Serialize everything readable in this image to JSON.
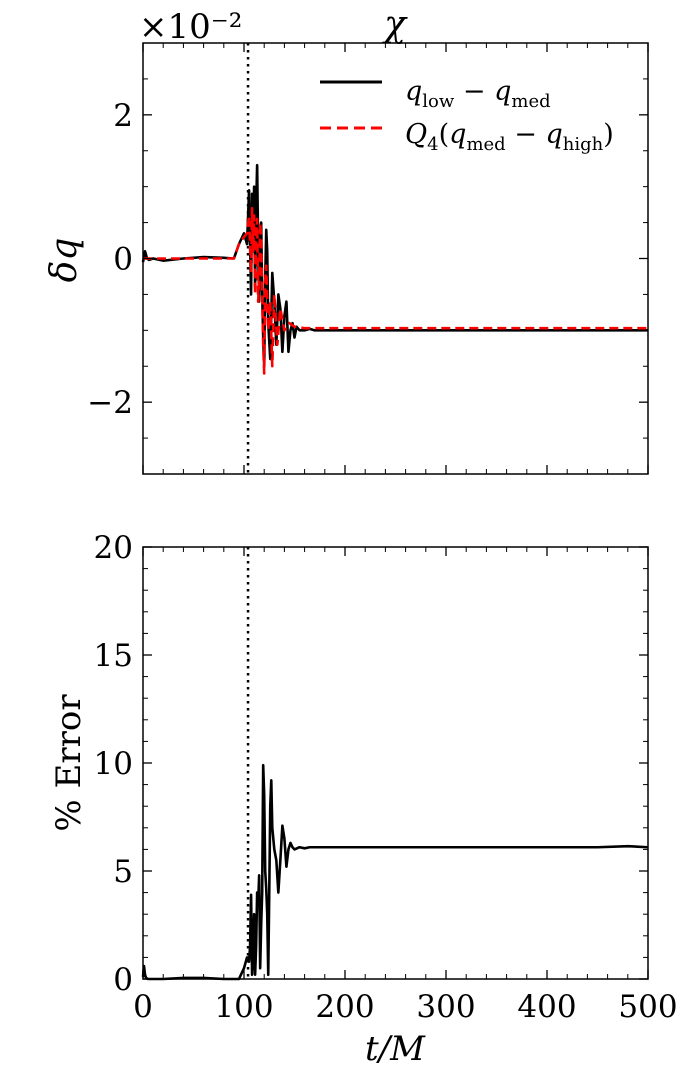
{
  "chart_data": [
    {
      "type": "line",
      "title": "χ",
      "offset_text": "×10⁻²",
      "xlabel": "",
      "ylabel": "δq",
      "xlim": [
        0,
        500
      ],
      "ylim": [
        -3,
        3
      ],
      "x_ticks": [
        0,
        100,
        200,
        300,
        400,
        500
      ],
      "y_ticks": [
        -2,
        0,
        2
      ],
      "y_tick_labels": [
        "−2",
        "0",
        "2"
      ],
      "vline_x": 104,
      "legend": "top-right",
      "series": [
        {
          "name": "q_low − q_med",
          "legend_label": {
            "q": "q",
            "sub1": "low",
            "op": " − ",
            "q2": "q",
            "sub2": "med"
          },
          "color": "#000000",
          "dash": "solid",
          "x": [
            0,
            2,
            4,
            6,
            10,
            20,
            40,
            60,
            80,
            90,
            95,
            100,
            103,
            105,
            107,
            108,
            109,
            110,
            111,
            112,
            113,
            114,
            115,
            116,
            117,
            118,
            119,
            120,
            121,
            122,
            123,
            124,
            126,
            128,
            130,
            132,
            134,
            136,
            138,
            140,
            142,
            144,
            146,
            148,
            150,
            152,
            155,
            160,
            165,
            170,
            180,
            200,
            250,
            300,
            350,
            400,
            450,
            500
          ],
          "values": [
            -0.05,
            0.1,
            0.0,
            -0.02,
            0.0,
            -0.03,
            0.0,
            0.02,
            0.01,
            0.0,
            0.2,
            0.35,
            0.2,
            0.95,
            -0.5,
            0.9,
            0.1,
            1.0,
            -0.4,
            0.7,
            1.3,
            0.2,
            -0.6,
            0.4,
            0.5,
            -0.5,
            -1.1,
            -1.5,
            -0.3,
            0.4,
            0.1,
            -0.9,
            -1.4,
            -0.2,
            -0.6,
            -1.2,
            -0.5,
            -0.7,
            -1.3,
            -0.8,
            -0.6,
            -1.3,
            -1.0,
            -0.9,
            -1.1,
            -0.95,
            -1.0,
            -1.0,
            -0.98,
            -1.0,
            -1.0,
            -1.0,
            -1.0,
            -1.0,
            -1.0,
            -1.0,
            -1.0,
            -1.0
          ]
        },
        {
          "name": "Q_4(q_med − q_high)",
          "legend_label": {
            "Q": "Q",
            "Qsub": "4",
            "open": "(",
            "q": "q",
            "sub1": "med",
            "op": " − ",
            "q2": "q",
            "sub2": "high",
            "close": ")"
          },
          "color": "#ff0000",
          "dash": "dashed",
          "x": [
            0,
            5,
            20,
            40,
            60,
            80,
            90,
            95,
            100,
            103,
            105,
            107,
            108,
            109,
            110,
            111,
            112,
            113,
            114,
            115,
            116,
            117,
            118,
            119,
            120,
            121,
            122,
            124,
            126,
            128,
            130,
            133,
            136,
            140,
            145,
            150,
            160,
            180,
            200,
            250,
            300,
            350,
            400,
            450,
            500
          ],
          "values": [
            0.0,
            0.0,
            0.0,
            0.0,
            0.0,
            0.0,
            0.0,
            0.2,
            0.3,
            0.35,
            0.6,
            -0.2,
            0.7,
            0.1,
            0.6,
            -0.5,
            0.3,
            0.55,
            -0.6,
            -0.3,
            0.5,
            0.3,
            -0.5,
            -1.2,
            -1.6,
            -0.3,
            -0.1,
            -1.0,
            -0.6,
            -1.5,
            -0.5,
            -1.2,
            -0.7,
            -1.0,
            -0.9,
            -0.95,
            -0.97,
            -0.97,
            -0.97,
            -0.97,
            -0.97,
            -0.97,
            -0.97,
            -0.97,
            -0.97
          ]
        }
      ]
    },
    {
      "type": "line",
      "title": "",
      "xlabel": "t/M",
      "ylabel": "% Error",
      "xlim": [
        0,
        500
      ],
      "ylim": [
        0,
        20
      ],
      "x_ticks": [
        0,
        100,
        200,
        300,
        400,
        500
      ],
      "x_tick_labels": [
        "0",
        "100",
        "200",
        "300",
        "400",
        "500"
      ],
      "y_ticks": [
        0,
        5,
        10,
        15,
        20
      ],
      "y_tick_labels": [
        "0",
        "5",
        "10",
        "15",
        "20"
      ],
      "vline_x": 104,
      "series": [
        {
          "name": "",
          "color": "#000000",
          "dash": "solid",
          "x": [
            0,
            1,
            2,
            3,
            5,
            10,
            20,
            40,
            60,
            80,
            90,
            95,
            100,
            103,
            105,
            106,
            107,
            108,
            109,
            110,
            111,
            112,
            113,
            114,
            115,
            116,
            117,
            118,
            119,
            120,
            121,
            122,
            123,
            124,
            125,
            126,
            127,
            128,
            130,
            132,
            134,
            136,
            138,
            140,
            142,
            144,
            146,
            148,
            150,
            155,
            160,
            165,
            170,
            180,
            200,
            250,
            300,
            350,
            400,
            450,
            480,
            500
          ],
          "values": [
            0.1,
            0.6,
            0.2,
            0.05,
            0.0,
            0.0,
            0.0,
            0.05,
            0.05,
            0.0,
            0.0,
            0.0,
            0.5,
            1.0,
            0.8,
            1.5,
            3.9,
            0.2,
            1.0,
            3.0,
            0.2,
            1.5,
            4.0,
            3.5,
            4.8,
            0.5,
            2.5,
            4.0,
            9.9,
            8.5,
            5.0,
            4.2,
            3.0,
            0.2,
            4.0,
            8.0,
            9.2,
            7.0,
            6.0,
            5.5,
            4.0,
            5.5,
            7.1,
            6.5,
            5.2,
            6.0,
            6.3,
            6.1,
            6.0,
            6.1,
            6.05,
            6.1,
            6.1,
            6.1,
            6.1,
            6.1,
            6.1,
            6.1,
            6.1,
            6.1,
            6.15,
            6.1
          ]
        }
      ]
    }
  ]
}
